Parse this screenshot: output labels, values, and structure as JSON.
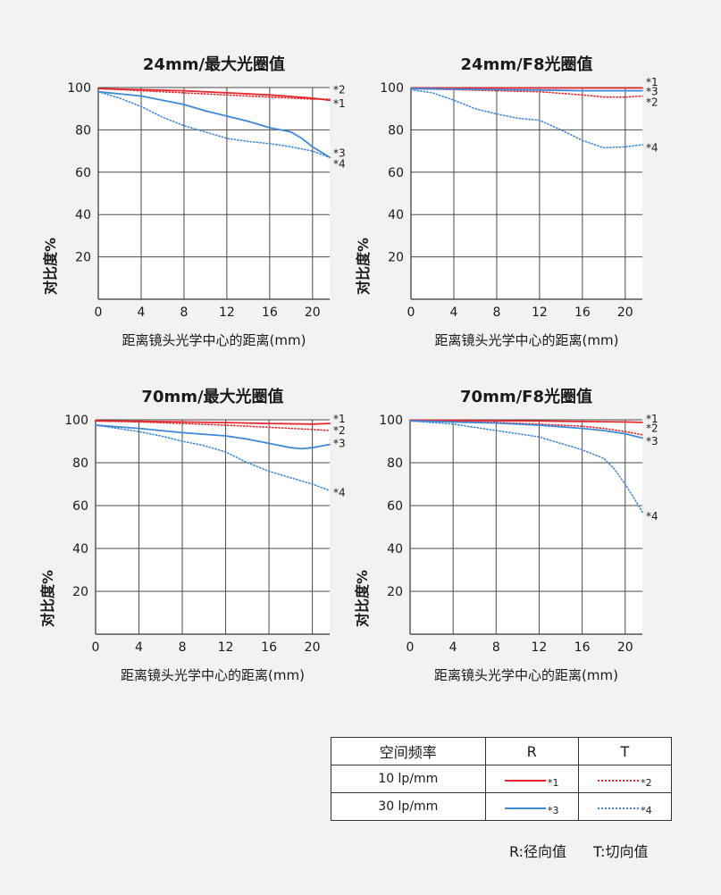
{
  "colors": {
    "red": "#e8262c",
    "blue": "#3f88d8",
    "grid": "#4a4a4a"
  },
  "chart_data": [
    {
      "type": "line",
      "title": "24mm/最大光圈值",
      "xlabel": "距离镜头光学中心的距离(mm)",
      "ylabel": "对比度%",
      "xlim": [
        0,
        21.6
      ],
      "ylim": [
        0,
        100
      ],
      "xticks": [
        "0",
        "4",
        "8",
        "12",
        "16",
        "20"
      ],
      "yticks": [
        "20",
        "40",
        "60",
        "80",
        "100"
      ],
      "grid": true,
      "series": [
        {
          "marker": "*1",
          "color": "red",
          "style": "solid",
          "x": [
            0,
            4,
            8,
            12,
            16,
            20,
            21.6
          ],
          "y": [
            99.5,
            99,
            98.5,
            97.5,
            96.5,
            95,
            94
          ]
        },
        {
          "marker": "*2",
          "color": "red",
          "style": "dotted",
          "x": [
            0,
            4,
            8,
            12,
            16,
            20,
            21.6
          ],
          "y": [
            99.5,
            98.5,
            97.5,
            96.5,
            95.5,
            94.5,
            94.5
          ]
        },
        {
          "marker": "*3",
          "color": "blue",
          "style": "solid",
          "x": [
            0,
            4,
            8,
            10,
            12,
            14,
            16,
            18,
            19,
            20,
            21.6
          ],
          "y": [
            98,
            96,
            92,
            89,
            86.5,
            84,
            81,
            79,
            76,
            72,
            67
          ]
        },
        {
          "marker": "*4",
          "color": "blue",
          "style": "dotted",
          "x": [
            0,
            2,
            4,
            6,
            8,
            10,
            12,
            14,
            16,
            18,
            20,
            21.6
          ],
          "y": [
            98,
            95,
            91,
            86,
            82,
            79,
            76,
            74.5,
            73.5,
            72,
            70,
            67
          ]
        }
      ],
      "labels": [
        {
          "text": "*2",
          "y": 99
        },
        {
          "text": "*1",
          "y": 92.5
        },
        {
          "text": "*3",
          "y": 69
        },
        {
          "text": "*4",
          "y": 64
        }
      ]
    },
    {
      "type": "line",
      "title": "24mm/F8光圈值",
      "xlabel": "距离镜头光学中心的距离(mm)",
      "ylabel": "对比度%",
      "xlim": [
        0,
        21.6
      ],
      "ylim": [
        0,
        100
      ],
      "xticks": [
        "0",
        "4",
        "8",
        "12",
        "16",
        "20"
      ],
      "yticks": [
        "20",
        "40",
        "60",
        "80",
        "100"
      ],
      "grid": true,
      "series": [
        {
          "marker": "*1",
          "color": "red",
          "style": "solid",
          "x": [
            0,
            4,
            8,
            12,
            16,
            20,
            21.6
          ],
          "y": [
            99.8,
            99.8,
            99.8,
            99.8,
            99.8,
            99.8,
            99.8
          ]
        },
        {
          "marker": "*2",
          "color": "red",
          "style": "dotted",
          "x": [
            0,
            4,
            8,
            12,
            16,
            18,
            20,
            21.6
          ],
          "y": [
            99.5,
            99,
            98.5,
            98,
            96.5,
            95.5,
            95.5,
            96
          ]
        },
        {
          "marker": "*3",
          "color": "blue",
          "style": "solid",
          "x": [
            0,
            4,
            8,
            12,
            16,
            20,
            21.6
          ],
          "y": [
            99.5,
            99.3,
            99,
            98.8,
            98.5,
            98.5,
            98.5
          ]
        },
        {
          "marker": "*4",
          "color": "blue",
          "style": "dotted",
          "x": [
            0,
            2,
            4,
            6,
            8,
            10,
            12,
            14,
            16,
            18,
            20,
            21.6
          ],
          "y": [
            99,
            97.5,
            94,
            90,
            87.5,
            85.5,
            84.5,
            80,
            75,
            71.5,
            72,
            73
          ]
        }
      ],
      "labels": [
        {
          "text": "*1",
          "y": 102.5
        },
        {
          "text": "*3",
          "y": 98
        },
        {
          "text": "*2",
          "y": 93
        },
        {
          "text": "*4",
          "y": 71.5
        }
      ]
    },
    {
      "type": "line",
      "title": "70mm/最大光圈值",
      "xlabel": "距离镜头光学中心的距离(mm)",
      "ylabel": "对比度%",
      "xlim": [
        0,
        21.6
      ],
      "ylim": [
        0,
        100
      ],
      "xticks": [
        "0",
        "4",
        "8",
        "12",
        "16",
        "20"
      ],
      "yticks": [
        "20",
        "40",
        "60",
        "80",
        "100"
      ],
      "grid": true,
      "series": [
        {
          "marker": "*1",
          "color": "red",
          "style": "solid",
          "x": [
            0,
            4,
            8,
            12,
            16,
            20,
            21.6
          ],
          "y": [
            99.5,
            99.3,
            99,
            98.7,
            98.3,
            98,
            98.3
          ]
        },
        {
          "marker": "*2",
          "color": "red",
          "style": "dotted",
          "x": [
            0,
            4,
            8,
            12,
            16,
            20,
            21.6
          ],
          "y": [
            99.5,
            99,
            98.3,
            97.5,
            96.5,
            95.5,
            95
          ]
        },
        {
          "marker": "*3",
          "color": "blue",
          "style": "solid",
          "x": [
            0,
            4,
            8,
            12,
            14,
            16,
            18,
            19,
            20,
            21.6
          ],
          "y": [
            97.5,
            96,
            94,
            92.5,
            91,
            89,
            87,
            86.5,
            87,
            88.5
          ]
        },
        {
          "marker": "*4",
          "color": "blue",
          "style": "dotted",
          "x": [
            0,
            2,
            4,
            6,
            8,
            10,
            12,
            14,
            16,
            18,
            20,
            21.6
          ],
          "y": [
            97.5,
            96,
            94.5,
            92.5,
            90,
            88,
            85,
            80,
            76,
            73,
            70,
            67
          ]
        }
      ],
      "labels": [
        {
          "text": "*1",
          "y": 100.5
        },
        {
          "text": "*2",
          "y": 95
        },
        {
          "text": "*3",
          "y": 89
        },
        {
          "text": "*4",
          "y": 66
        }
      ]
    },
    {
      "type": "line",
      "title": "70mm/F8光圈值",
      "xlabel": "距离镜头光学中心的距离(mm)",
      "ylabel": "对比度%",
      "xlim": [
        0,
        21.6
      ],
      "ylim": [
        0,
        100
      ],
      "xticks": [
        "0",
        "4",
        "8",
        "12",
        "16",
        "20"
      ],
      "yticks": [
        "20",
        "40",
        "60",
        "80",
        "100"
      ],
      "grid": true,
      "series": [
        {
          "marker": "*1",
          "color": "red",
          "style": "solid",
          "x": [
            0,
            4,
            8,
            12,
            16,
            20,
            21.6
          ],
          "y": [
            99.8,
            99.7,
            99.6,
            99.4,
            99.2,
            99,
            98.8
          ]
        },
        {
          "marker": "*2",
          "color": "red",
          "style": "dotted",
          "x": [
            0,
            4,
            8,
            12,
            16,
            18,
            20,
            21.6
          ],
          "y": [
            99.7,
            99.3,
            98.8,
            98,
            97,
            96,
            94.5,
            93
          ]
        },
        {
          "marker": "*3",
          "color": "blue",
          "style": "solid",
          "x": [
            0,
            4,
            8,
            12,
            16,
            18,
            20,
            21.6
          ],
          "y": [
            99.5,
            99,
            98.5,
            97.5,
            96,
            95,
            93.5,
            91.5
          ]
        },
        {
          "marker": "*4",
          "color": "blue",
          "style": "dotted",
          "x": [
            0,
            4,
            8,
            10,
            12,
            14,
            16,
            18,
            19,
            20,
            21,
            21.6
          ],
          "y": [
            99.5,
            98,
            95,
            93.5,
            92,
            89,
            86,
            82,
            77,
            70,
            62,
            57
          ]
        }
      ],
      "labels": [
        {
          "text": "*1",
          "y": 100.5
        },
        {
          "text": "*2",
          "y": 96
        },
        {
          "text": "*3",
          "y": 90
        },
        {
          "text": "*4",
          "y": 55
        }
      ]
    }
  ],
  "legend": {
    "header": {
      "freq": "空间频率",
      "r": "R",
      "t": "T"
    },
    "rows": [
      {
        "freq": "10 lp/mm",
        "r_marker": "*1",
        "t_marker": "*2"
      },
      {
        "freq": "30 lp/mm",
        "r_marker": "*3",
        "t_marker": "*4"
      }
    ]
  },
  "footnote": {
    "r": "R:径向值",
    "t": "T:切向值"
  }
}
